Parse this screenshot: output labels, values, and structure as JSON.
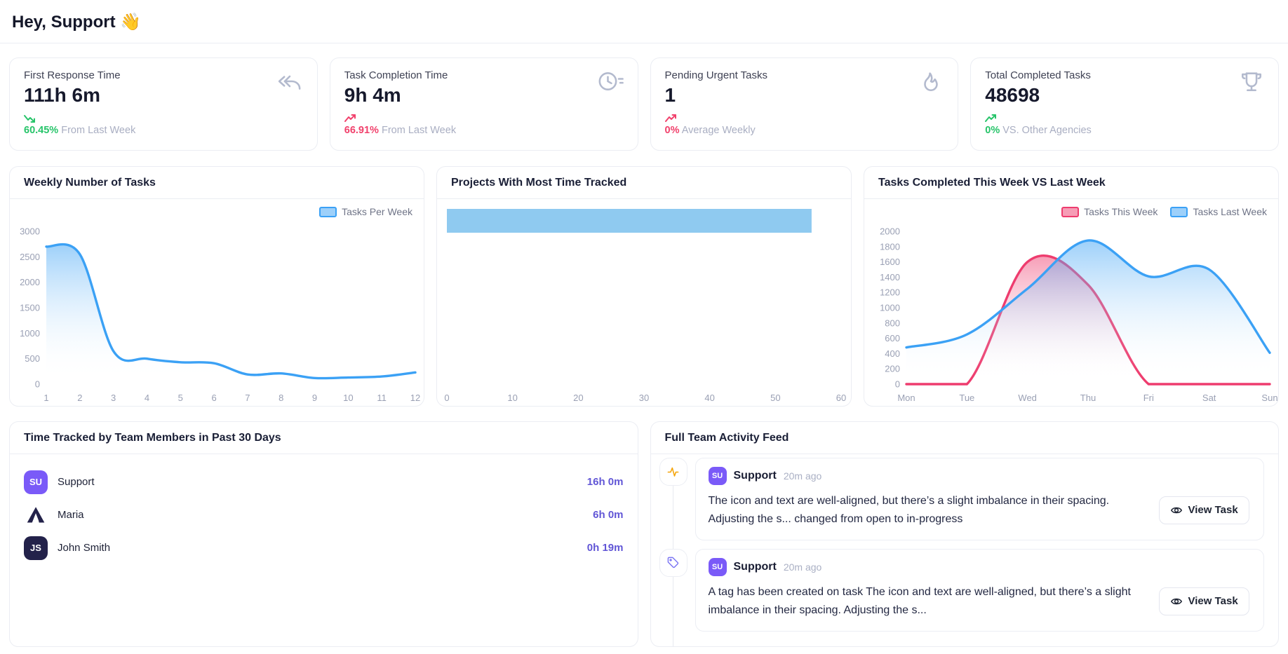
{
  "header": {
    "title": "Hey, Support",
    "emoji": "👋"
  },
  "colors": {
    "accent_purple": "#7a5af8",
    "value_purple": "#6156d6",
    "green": "#27c46a",
    "red": "#f1416c",
    "blue_line": "#3ba1f5",
    "pink_line": "#ee3c6e",
    "bar_blue": "#8fcaf0",
    "icon_gray": "#b3bace",
    "pulse_orange": "#f5a50b",
    "tag_purple": "#7a74f3"
  },
  "stats": [
    {
      "label": "First Response Time",
      "value": "111h 6m",
      "trend_pct": "60.45%",
      "trend_note": "From Last Week",
      "icon": "reply-arrows-icon",
      "trend": "down",
      "trend_color": "green"
    },
    {
      "label": "Task Completion Time",
      "value": "9h 4m",
      "trend_pct": "66.91%",
      "trend_note": "From Last Week",
      "icon": "clock-history-icon",
      "trend": "up",
      "trend_color": "red"
    },
    {
      "label": "Pending Urgent Tasks",
      "value": "1",
      "trend_pct": "0%",
      "trend_note": "Average Weekly",
      "icon": "flame-icon",
      "trend": "up",
      "trend_color": "red"
    },
    {
      "label": "Total Completed Tasks",
      "value": "48698",
      "trend_pct": "0%",
      "trend_note": "VS. Other Agencies",
      "icon": "trophy-icon",
      "trend": "up",
      "trend_color": "green"
    }
  ],
  "chart_data": [
    {
      "type": "line",
      "title": "Weekly Number of Tasks",
      "legend": [
        "Tasks Per Week"
      ],
      "legend_position": "top-right",
      "grid": false,
      "x": [
        1,
        2,
        3,
        4,
        5,
        6,
        7,
        8,
        9,
        10,
        11,
        12
      ],
      "yticks": [
        0,
        500,
        1000,
        1500,
        2000,
        2500,
        3000
      ],
      "ylim": [
        0,
        3000
      ],
      "series": [
        {
          "name": "Tasks Per Week",
          "color": "#3ba1f5",
          "area": true,
          "values": [
            2700,
            2550,
            650,
            500,
            430,
            410,
            190,
            210,
            120,
            130,
            150,
            230
          ]
        }
      ]
    },
    {
      "type": "bar",
      "orientation": "horizontal",
      "title": "Projects With Most Time Tracked",
      "categories": [
        ""
      ],
      "values": [
        55.5
      ],
      "color": "#8fcaf0",
      "xticks": [
        0,
        10,
        20,
        30,
        40,
        50,
        60
      ],
      "xlim": [
        0,
        60
      ],
      "grid": false
    },
    {
      "type": "line",
      "title": "Tasks Completed This Week VS Last Week",
      "legend": [
        "Tasks This Week",
        "Tasks Last Week"
      ],
      "legend_position": "top-right",
      "grid": false,
      "categories": [
        "Mon",
        "Tue",
        "Wed",
        "Thu",
        "Fri",
        "Sat",
        "Sun"
      ],
      "yticks": [
        0,
        200,
        400,
        600,
        800,
        1000,
        1200,
        1400,
        1600,
        1800,
        2000
      ],
      "ylim": [
        0,
        2000
      ],
      "series": [
        {
          "name": "Tasks This Week",
          "color": "#ee3c6e",
          "area": true,
          "values": [
            0,
            0,
            1600,
            1300,
            0,
            0,
            0
          ]
        },
        {
          "name": "Tasks Last Week",
          "color": "#3ba1f5",
          "area": true,
          "values": [
            480,
            650,
            1250,
            1880,
            1410,
            1500,
            410
          ]
        }
      ]
    }
  ],
  "team": {
    "title": "Time Tracked by Team Members in Past 30 Days",
    "members": [
      {
        "initials": "SU",
        "name": "Support",
        "time": "16h 0m",
        "avatar_color": "#7a5af8",
        "avatar_kind": "initials"
      },
      {
        "initials": "",
        "name": "Maria",
        "time": "6h 0m",
        "avatar_color": "#23224a",
        "avatar_kind": "logo"
      },
      {
        "initials": "JS",
        "name": "John Smith",
        "time": "0h 19m",
        "avatar_color": "#23224a",
        "avatar_kind": "initials"
      }
    ]
  },
  "feed": {
    "title": "Full Team Activity Feed",
    "items": [
      {
        "icon": "activity-pulse-icon",
        "author": "Support",
        "author_initials": "SU",
        "time": "20m ago",
        "text": "The icon and text are well-aligned, but there’s a slight imbalance in their spacing. Adjusting the s... changed from open to in-progress",
        "button": "View Task"
      },
      {
        "icon": "tag-icon",
        "author": "Support",
        "author_initials": "SU",
        "time": "20m ago",
        "text": "A tag has been created on task The icon and text are well-aligned, but there’s a slight imbalance in their spacing. Adjusting the s...",
        "button": "View Task"
      }
    ]
  }
}
